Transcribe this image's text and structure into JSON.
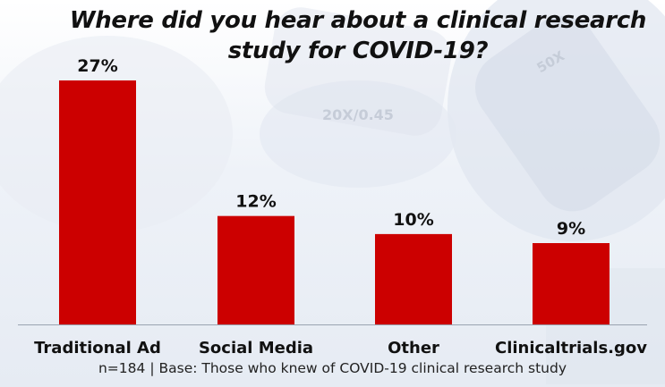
{
  "chart_data": {
    "type": "bar",
    "title_lines": [
      "Where did you hear about a clinical research",
      "study for COVID-19?"
    ],
    "categories": [
      "Traditional Ad",
      "Social Media",
      "Other",
      "Clinicaltrials.gov"
    ],
    "values": [
      27,
      12,
      10,
      9
    ],
    "value_labels": [
      "27%",
      "12%",
      "10%",
      "9%"
    ],
    "unit": "%",
    "ylim": [
      0,
      27
    ],
    "xlabel": "",
    "ylabel": "",
    "grid": false,
    "bar_color": "#cc0000"
  },
  "background_text": [
    "20X/0.45",
    "50X"
  ],
  "footnote": {
    "n": "n=184",
    "separator": "|",
    "base": "Base: Those who knew of COVID-19 clinical research study"
  }
}
